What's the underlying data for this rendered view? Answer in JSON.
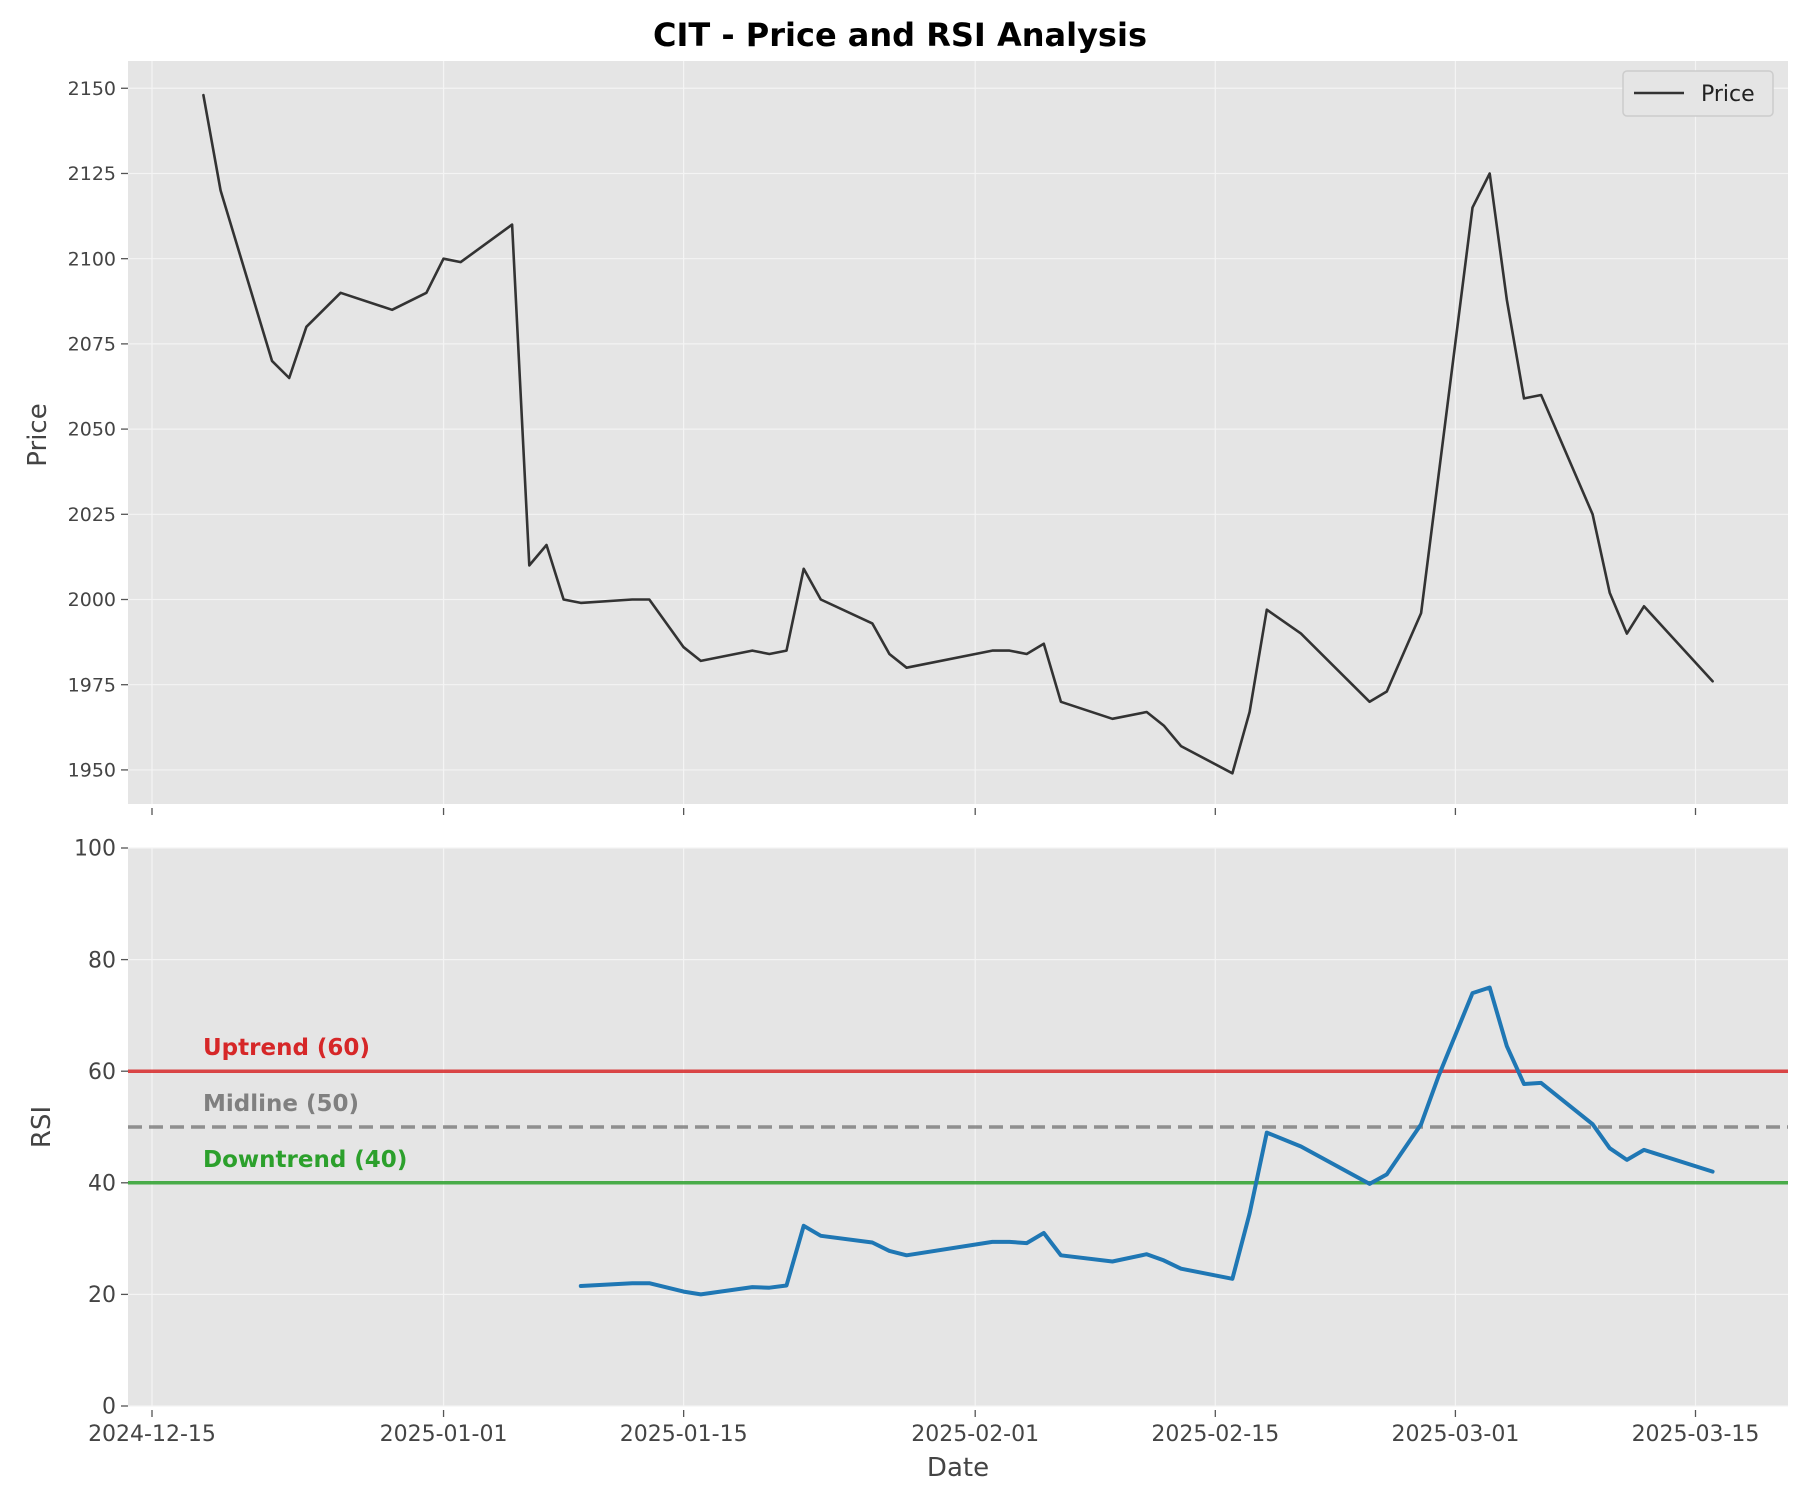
{
  "title": "CIT - Price and RSI Analysis",
  "x_ticks": [
    "2024-12-15",
    "2025-01-01",
    "2025-01-15",
    "2025-02-01",
    "2025-02-15",
    "2025-03-01",
    "2025-03-15"
  ],
  "chart_data": [
    {
      "type": "line",
      "panel": "price",
      "ylabel": "Price",
      "ylim": [
        1940,
        2158
      ],
      "y_ticks": [
        1950,
        1975,
        2000,
        2025,
        2050,
        2075,
        2100,
        2125,
        2150
      ],
      "grid": true,
      "legend": {
        "position": "top-right",
        "entries": [
          "Price"
        ]
      },
      "series": [
        {
          "name": "Price",
          "color": "#333333",
          "x": [
            "2024-12-18",
            "2024-12-19",
            "2024-12-22",
            "2024-12-23",
            "2024-12-24",
            "2024-12-26",
            "2024-12-29",
            "2024-12-31",
            "2025-01-01",
            "2025-01-02",
            "2025-01-05",
            "2025-01-06",
            "2025-01-07",
            "2025-01-08",
            "2025-01-09",
            "2025-01-12",
            "2025-01-13",
            "2025-01-15",
            "2025-01-16",
            "2025-01-19",
            "2025-01-20",
            "2025-01-21",
            "2025-01-22",
            "2025-01-23",
            "2025-01-26",
            "2025-01-27",
            "2025-01-28",
            "2025-02-02",
            "2025-02-03",
            "2025-02-04",
            "2025-02-05",
            "2025-02-06",
            "2025-02-09",
            "2025-02-11",
            "2025-02-12",
            "2025-02-13",
            "2025-02-16",
            "2025-02-17",
            "2025-02-18",
            "2025-02-20",
            "2025-02-24",
            "2025-02-25",
            "2025-02-27",
            "2025-03-02",
            "2025-03-03",
            "2025-03-04",
            "2025-03-05",
            "2025-03-06",
            "2025-03-09",
            "2025-03-10",
            "2025-03-11",
            "2025-03-12",
            "2025-03-16"
          ],
          "y": [
            2148,
            2120,
            2070,
            2065,
            2080,
            2090,
            2085,
            2090,
            2100,
            2099,
            2110,
            2010,
            2016,
            2000,
            1999,
            2000,
            2000,
            1986,
            1982,
            1985,
            1984,
            1985,
            2009,
            2000,
            1993,
            1984,
            1980,
            1985,
            1985,
            1984,
            1987,
            1970,
            1965,
            1967,
            1963,
            1957,
            1949,
            1967,
            1997,
            1990,
            1970,
            1973,
            1996,
            2115,
            2125,
            2088,
            2059,
            2060,
            2025,
            2002,
            1990,
            1998,
            1976
          ]
        }
      ]
    },
    {
      "type": "line",
      "panel": "rsi",
      "xlabel": "Date",
      "ylabel": "RSI",
      "ylim": [
        0,
        100
      ],
      "y_ticks": [
        0,
        20,
        40,
        60,
        80,
        100
      ],
      "grid": true,
      "reference_lines": [
        {
          "label": "Uptrend (60)",
          "value": 60,
          "color": "#d62728",
          "style": "solid"
        },
        {
          "label": "Midline (50)",
          "value": 50,
          "color": "#808080",
          "style": "dashed"
        },
        {
          "label": "Downtrend (40)",
          "value": 40,
          "color": "#2ca02c",
          "style": "solid"
        }
      ],
      "series": [
        {
          "name": "RSI",
          "color": "#1f77b4",
          "x": [
            "2025-01-09",
            "2025-01-12",
            "2025-01-13",
            "2025-01-15",
            "2025-01-16",
            "2025-01-19",
            "2025-01-20",
            "2025-01-21",
            "2025-01-22",
            "2025-01-23",
            "2025-01-26",
            "2025-01-27",
            "2025-01-28",
            "2025-02-02",
            "2025-02-03",
            "2025-02-04",
            "2025-02-05",
            "2025-02-06",
            "2025-02-09",
            "2025-02-11",
            "2025-02-12",
            "2025-02-13",
            "2025-02-16",
            "2025-02-17",
            "2025-02-18",
            "2025-02-20",
            "2025-02-24",
            "2025-02-25",
            "2025-02-27",
            "2025-02-28",
            "2025-03-02",
            "2025-03-03",
            "2025-03-04",
            "2025-03-05",
            "2025-03-06",
            "2025-03-09",
            "2025-03-10",
            "2025-03-11",
            "2025-03-12",
            "2025-03-16"
          ],
          "y": [
            21.5,
            22,
            22,
            20.5,
            20,
            21.3,
            21.2,
            21.6,
            32.3,
            30.5,
            29.3,
            27.8,
            27,
            29.4,
            29.4,
            29.2,
            31,
            27,
            25.9,
            27.2,
            26.1,
            24.6,
            22.8,
            34.5,
            49,
            46.5,
            39.8,
            41.5,
            50.5,
            59,
            74,
            75,
            64.5,
            57.7,
            57.9,
            50.5,
            46.2,
            44.1,
            45.9,
            42
          ]
        }
      ]
    }
  ]
}
